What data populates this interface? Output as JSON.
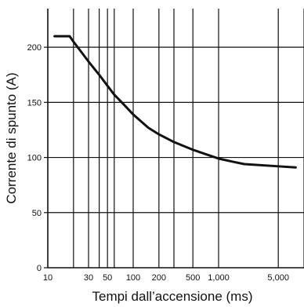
{
  "chart_data": {
    "type": "line",
    "title": "",
    "xlabel": "Tempi dall’accensione (ms)",
    "ylabel": "Corrente di spunto (A)",
    "x_scale": "log",
    "xlim": [
      10,
      10000
    ],
    "ylim": [
      0,
      235
    ],
    "grid": true,
    "x_ticks": [
      {
        "value": 10,
        "label": "10"
      },
      {
        "value": 30,
        "label": "30"
      },
      {
        "value": 50,
        "label": "50"
      },
      {
        "value": 100,
        "label": "100"
      },
      {
        "value": 200,
        "label": "200"
      },
      {
        "value": 500,
        "label": "500"
      },
      {
        "value": 1000,
        "label": "1,000"
      },
      {
        "value": 5000,
        "label": "5,000"
      }
    ],
    "x_gridlines": [
      20,
      30,
      40,
      50,
      60,
      100,
      200,
      300,
      500,
      1000,
      5000,
      10000
    ],
    "y_ticks": [
      {
        "value": 0,
        "label": "0"
      },
      {
        "value": 50,
        "label": "50"
      },
      {
        "value": 100,
        "label": "100"
      },
      {
        "value": 150,
        "label": "150"
      },
      {
        "value": 200,
        "label": "200"
      }
    ],
    "series": [
      {
        "color": "#111111",
        "points": [
          {
            "x": 12,
            "y": 210
          },
          {
            "x": 18,
            "y": 210
          },
          {
            "x": 20,
            "y": 205
          },
          {
            "x": 30,
            "y": 187
          },
          {
            "x": 40,
            "y": 175
          },
          {
            "x": 50,
            "y": 165
          },
          {
            "x": 60,
            "y": 157
          },
          {
            "x": 80,
            "y": 147
          },
          {
            "x": 100,
            "y": 139
          },
          {
            "x": 150,
            "y": 127
          },
          {
            "x": 200,
            "y": 121
          },
          {
            "x": 300,
            "y": 114
          },
          {
            "x": 500,
            "y": 107
          },
          {
            "x": 1000,
            "y": 99
          },
          {
            "x": 1500,
            "y": 96
          },
          {
            "x": 2000,
            "y": 94
          },
          {
            "x": 5000,
            "y": 92
          },
          {
            "x": 8000,
            "y": 91
          }
        ]
      }
    ]
  }
}
